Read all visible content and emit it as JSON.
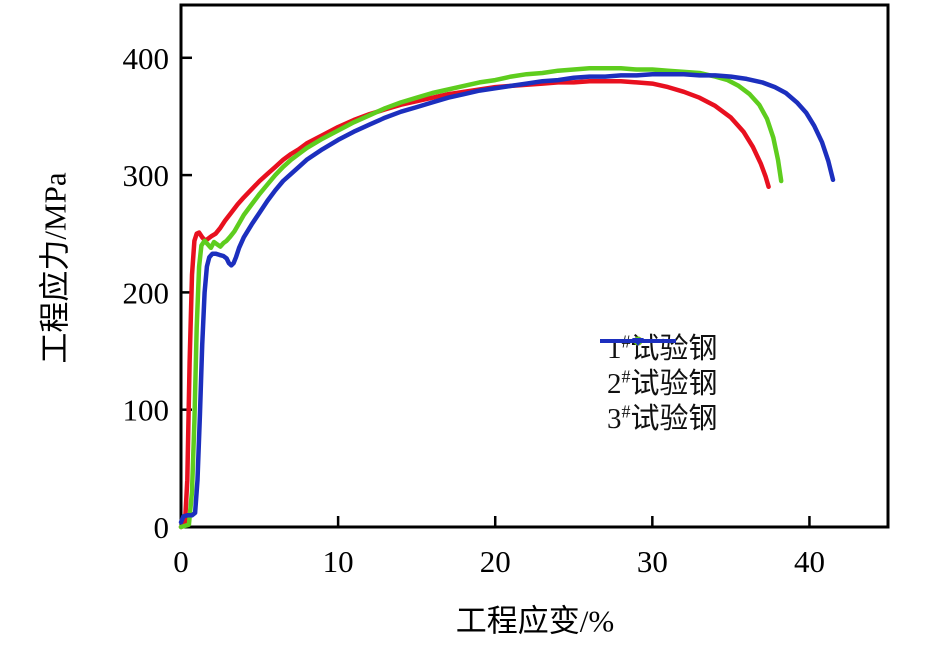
{
  "chart_data": {
    "type": "line",
    "title": "",
    "xlabel": "工程应变/%",
    "ylabel": "工程应力/MPa",
    "xlim": [
      0,
      45
    ],
    "ylim": [
      0,
      445
    ],
    "x_ticks": [
      0,
      10,
      20,
      30,
      40
    ],
    "y_ticks": [
      0,
      100,
      200,
      300,
      400
    ],
    "grid": false,
    "legend_position": "inside-right-middle",
    "frame_color": "#000000",
    "series": [
      {
        "name": "1#试验钢",
        "legend_num": "1",
        "legend_sup": "#",
        "legend_text": "试验钢",
        "color": "#e8101f",
        "marker": "circle",
        "points": [
          [
            0,
            0
          ],
          [
            0.25,
            2
          ],
          [
            0.4,
            40
          ],
          [
            0.55,
            140
          ],
          [
            0.7,
            215
          ],
          [
            0.85,
            244
          ],
          [
            1.0,
            250
          ],
          [
            1.15,
            251
          ],
          [
            1.35,
            247
          ],
          [
            1.55,
            244
          ],
          [
            1.75,
            246
          ],
          [
            1.95,
            248
          ],
          [
            2.2,
            250
          ],
          [
            2.5,
            255
          ],
          [
            2.8,
            261
          ],
          [
            3.2,
            268
          ],
          [
            3.6,
            275
          ],
          [
            4,
            281
          ],
          [
            4.5,
            288
          ],
          [
            5,
            295
          ],
          [
            5.5,
            301
          ],
          [
            6,
            307
          ],
          [
            6.5,
            313
          ],
          [
            7,
            318
          ],
          [
            7.5,
            322
          ],
          [
            8,
            327
          ],
          [
            9,
            334
          ],
          [
            10,
            341
          ],
          [
            11,
            347
          ],
          [
            12,
            352
          ],
          [
            13,
            356
          ],
          [
            14,
            360
          ],
          [
            15,
            363
          ],
          [
            16,
            366
          ],
          [
            17,
            369
          ],
          [
            18,
            371
          ],
          [
            19,
            373
          ],
          [
            20,
            375
          ],
          [
            21,
            376
          ],
          [
            22,
            377
          ],
          [
            23,
            378
          ],
          [
            24,
            379
          ],
          [
            25,
            379
          ],
          [
            26,
            380
          ],
          [
            27,
            380
          ],
          [
            28,
            380
          ],
          [
            29,
            379
          ],
          [
            30,
            378
          ],
          [
            31,
            375
          ],
          [
            32,
            371
          ],
          [
            33,
            366
          ],
          [
            34,
            359
          ],
          [
            35,
            349
          ],
          [
            35.8,
            337
          ],
          [
            36.4,
            324
          ],
          [
            36.9,
            310
          ],
          [
            37.2,
            299
          ],
          [
            37.4,
            290
          ]
        ]
      },
      {
        "name": "2#试验钢",
        "legend_num": "2",
        "legend_sup": "#",
        "legend_text": "试验钢",
        "color": "#5ecd1e",
        "marker": "circle",
        "points": [
          [
            0,
            0
          ],
          [
            0.5,
            2
          ],
          [
            0.7,
            30
          ],
          [
            0.85,
            90
          ],
          [
            1.0,
            170
          ],
          [
            1.15,
            222
          ],
          [
            1.3,
            240
          ],
          [
            1.5,
            244
          ],
          [
            1.7,
            241
          ],
          [
            1.9,
            238
          ],
          [
            2.1,
            243
          ],
          [
            2.3,
            241
          ],
          [
            2.5,
            239
          ],
          [
            2.7,
            242
          ],
          [
            2.9,
            244
          ],
          [
            3.1,
            247
          ],
          [
            3.4,
            252
          ],
          [
            3.7,
            259
          ],
          [
            4,
            266
          ],
          [
            4.5,
            275
          ],
          [
            5,
            284
          ],
          [
            5.5,
            292
          ],
          [
            6,
            300
          ],
          [
            6.5,
            307
          ],
          [
            7,
            313
          ],
          [
            7.5,
            318
          ],
          [
            8,
            323
          ],
          [
            9,
            331
          ],
          [
            10,
            338
          ],
          [
            11,
            345
          ],
          [
            12,
            351
          ],
          [
            13,
            357
          ],
          [
            14,
            362
          ],
          [
            15,
            366
          ],
          [
            16,
            370
          ],
          [
            17,
            373
          ],
          [
            18,
            376
          ],
          [
            19,
            379
          ],
          [
            20,
            381
          ],
          [
            21,
            384
          ],
          [
            22,
            386
          ],
          [
            23,
            387
          ],
          [
            24,
            389
          ],
          [
            25,
            390
          ],
          [
            26,
            391
          ],
          [
            27,
            391
          ],
          [
            28,
            391
          ],
          [
            29,
            390
          ],
          [
            30,
            390
          ],
          [
            31,
            389
          ],
          [
            32,
            388
          ],
          [
            33,
            387
          ],
          [
            34,
            384
          ],
          [
            34.8,
            381
          ],
          [
            35.5,
            376
          ],
          [
            36.2,
            369
          ],
          [
            36.8,
            360
          ],
          [
            37.3,
            348
          ],
          [
            37.7,
            332
          ],
          [
            38,
            313
          ],
          [
            38.2,
            295
          ]
        ]
      },
      {
        "name": "3#试验钢",
        "legend_num": "3",
        "legend_sup": "#",
        "legend_text": "试验钢",
        "color": "#1c2fbe",
        "marker": "triangle-down",
        "points": [
          [
            0,
            4
          ],
          [
            0.15,
            9
          ],
          [
            0.4,
            10
          ],
          [
            0.7,
            10
          ],
          [
            0.9,
            12
          ],
          [
            1.05,
            40
          ],
          [
            1.2,
            95
          ],
          [
            1.35,
            155
          ],
          [
            1.5,
            200
          ],
          [
            1.65,
            222
          ],
          [
            1.8,
            230
          ],
          [
            2.0,
            233
          ],
          [
            2.2,
            233
          ],
          [
            2.45,
            232
          ],
          [
            2.7,
            231
          ],
          [
            2.9,
            229
          ],
          [
            3.05,
            225
          ],
          [
            3.2,
            223
          ],
          [
            3.35,
            225
          ],
          [
            3.5,
            230
          ],
          [
            3.7,
            238
          ],
          [
            4,
            247
          ],
          [
            4.5,
            258
          ],
          [
            5,
            268
          ],
          [
            5.5,
            278
          ],
          [
            6,
            287
          ],
          [
            6.5,
            295
          ],
          [
            7,
            301
          ],
          [
            7.5,
            307
          ],
          [
            8,
            313
          ],
          [
            9,
            322
          ],
          [
            10,
            330
          ],
          [
            11,
            337
          ],
          [
            12,
            343
          ],
          [
            13,
            349
          ],
          [
            14,
            354
          ],
          [
            15,
            358
          ],
          [
            16,
            362
          ],
          [
            17,
            366
          ],
          [
            18,
            369
          ],
          [
            19,
            372
          ],
          [
            20,
            374
          ],
          [
            21,
            376
          ],
          [
            22,
            378
          ],
          [
            23,
            380
          ],
          [
            24,
            381
          ],
          [
            25,
            383
          ],
          [
            26,
            384
          ],
          [
            27,
            384
          ],
          [
            28,
            385
          ],
          [
            29,
            385
          ],
          [
            30,
            386
          ],
          [
            31,
            386
          ],
          [
            32,
            386
          ],
          [
            33,
            385
          ],
          [
            34,
            385
          ],
          [
            35,
            384
          ],
          [
            36,
            382
          ],
          [
            37,
            379
          ],
          [
            37.8,
            375
          ],
          [
            38.5,
            370
          ],
          [
            39.2,
            362
          ],
          [
            39.8,
            353
          ],
          [
            40.3,
            342
          ],
          [
            40.8,
            328
          ],
          [
            41.2,
            312
          ],
          [
            41.5,
            296
          ]
        ]
      }
    ]
  }
}
